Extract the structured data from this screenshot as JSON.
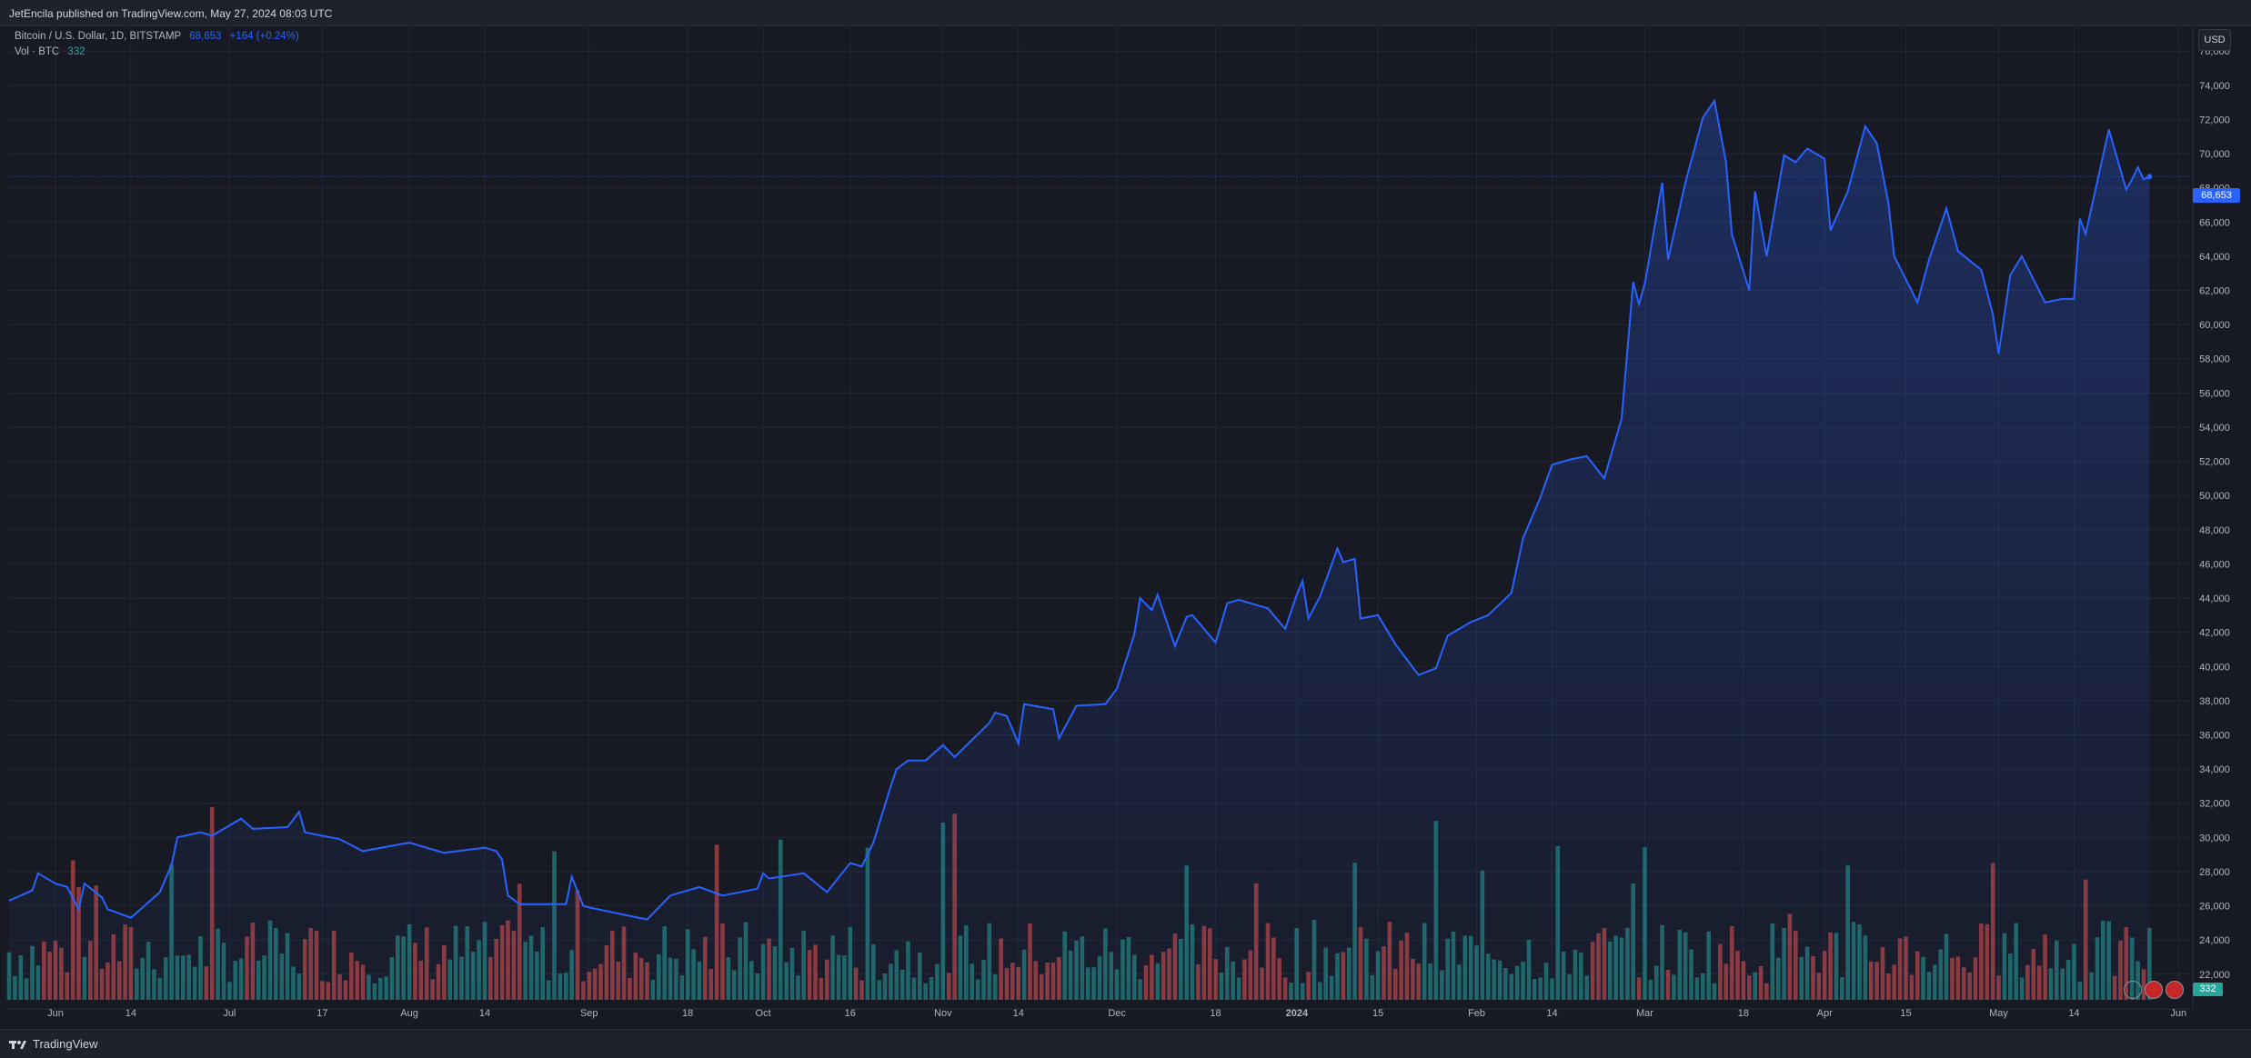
{
  "header": {
    "published": "JetEncila published on TradingView.com, May 27, 2024 08:03 UTC"
  },
  "legend": {
    "symbol": "Bitcoin / U.S. Dollar, 1D, BITSTAMP",
    "price": "68,653",
    "change": "+164 (+0.24%)",
    "volume_label": "Vol · BTC",
    "volume_value": "332"
  },
  "axis": {
    "currency": "USD",
    "price_tag": "68,653",
    "volume_tag": "332"
  },
  "footer": {
    "brand": "TradingView"
  },
  "colors": {
    "line": "#2962ff",
    "up_volume": "#26a69a",
    "down_volume": "#ef5350",
    "background": "#181a23"
  },
  "chart_data": {
    "type": "area",
    "title": "Bitcoin / U.S. Dollar, 1D, BITSTAMP",
    "xlabel": "",
    "ylabel": "",
    "grid": true,
    "ylim": [
      20500,
      77500
    ],
    "y_ticks": [
      22000,
      24000,
      26000,
      28000,
      30000,
      32000,
      34000,
      36000,
      38000,
      40000,
      42000,
      44000,
      46000,
      48000,
      50000,
      52000,
      54000,
      56000,
      58000,
      60000,
      62000,
      64000,
      66000,
      68000,
      70000,
      72000,
      74000,
      76000
    ],
    "y_tick_labels": [
      "22,000",
      "24,000",
      "26,000",
      "28,000",
      "30,000",
      "32,000",
      "34,000",
      "36,000",
      "38,000",
      "40,000",
      "42,000",
      "44,000",
      "46,000",
      "48,000",
      "50,000",
      "52,000",
      "54,000",
      "56,000",
      "58,000",
      "60,000",
      "62,000",
      "64,000",
      "66,000",
      "68,000",
      "70,000",
      "72,000",
      "74,000",
      "76,000"
    ],
    "x_range": [
      "2023-05-24",
      "2024-06-03"
    ],
    "x_ticks": [
      {
        "date": "2023-06-01",
        "label": "Jun"
      },
      {
        "date": "2023-06-14",
        "label": "14"
      },
      {
        "date": "2023-07-01",
        "label": "Jul"
      },
      {
        "date": "2023-07-17",
        "label": "17"
      },
      {
        "date": "2023-08-01",
        "label": "Aug"
      },
      {
        "date": "2023-08-14",
        "label": "14"
      },
      {
        "date": "2023-09-01",
        "label": "Sep"
      },
      {
        "date": "2023-09-18",
        "label": "18"
      },
      {
        "date": "2023-10-01",
        "label": "Oct"
      },
      {
        "date": "2023-10-16",
        "label": "16"
      },
      {
        "date": "2023-11-01",
        "label": "Nov"
      },
      {
        "date": "2023-11-14",
        "label": "14"
      },
      {
        "date": "2023-12-01",
        "label": "Dec"
      },
      {
        "date": "2023-12-18",
        "label": "18"
      },
      {
        "date": "2024-01-01",
        "label": "2024"
      },
      {
        "date": "2024-01-15",
        "label": "15"
      },
      {
        "date": "2024-02-01",
        "label": "Feb"
      },
      {
        "date": "2024-02-14",
        "label": "14"
      },
      {
        "date": "2024-03-01",
        "label": "Mar"
      },
      {
        "date": "2024-03-18",
        "label": "18"
      },
      {
        "date": "2024-04-01",
        "label": "Apr"
      },
      {
        "date": "2024-04-15",
        "label": "15"
      },
      {
        "date": "2024-05-01",
        "label": "May"
      },
      {
        "date": "2024-05-14",
        "label": "14"
      },
      {
        "date": "2024-06-01",
        "label": "Jun"
      }
    ],
    "series": [
      {
        "name": "Bitcoin / U.S. Dollar",
        "points": [
          [
            "2023-05-24",
            26300
          ],
          [
            "2023-05-28",
            26900
          ],
          [
            "2023-05-29",
            27900
          ],
          [
            "2023-06-01",
            27300
          ],
          [
            "2023-06-03",
            27100
          ],
          [
            "2023-06-05",
            25800
          ],
          [
            "2023-06-06",
            27300
          ],
          [
            "2023-06-09",
            26500
          ],
          [
            "2023-06-10",
            25800
          ],
          [
            "2023-06-14",
            25300
          ],
          [
            "2023-06-15",
            25600
          ],
          [
            "2023-06-19",
            26800
          ],
          [
            "2023-06-21",
            28400
          ],
          [
            "2023-06-22",
            30000
          ],
          [
            "2023-06-26",
            30300
          ],
          [
            "2023-06-28",
            30100
          ],
          [
            "2023-07-03",
            31100
          ],
          [
            "2023-07-05",
            30500
          ],
          [
            "2023-07-11",
            30600
          ],
          [
            "2023-07-13",
            31500
          ],
          [
            "2023-07-14",
            30300
          ],
          [
            "2023-07-20",
            29900
          ],
          [
            "2023-07-24",
            29200
          ],
          [
            "2023-08-01",
            29700
          ],
          [
            "2023-08-07",
            29100
          ],
          [
            "2023-08-14",
            29400
          ],
          [
            "2023-08-16",
            29200
          ],
          [
            "2023-08-17",
            28700
          ],
          [
            "2023-08-18",
            26600
          ],
          [
            "2023-08-20",
            26100
          ],
          [
            "2023-08-28",
            26100
          ],
          [
            "2023-08-29",
            27700
          ],
          [
            "2023-08-31",
            26000
          ],
          [
            "2023-09-01",
            25900
          ],
          [
            "2023-09-11",
            25200
          ],
          [
            "2023-09-15",
            26600
          ],
          [
            "2023-09-20",
            27100
          ],
          [
            "2023-09-24",
            26600
          ],
          [
            "2023-09-30",
            27000
          ],
          [
            "2023-10-01",
            27900
          ],
          [
            "2023-10-02",
            27600
          ],
          [
            "2023-10-08",
            27900
          ],
          [
            "2023-10-12",
            26800
          ],
          [
            "2023-10-16",
            28500
          ],
          [
            "2023-10-18",
            28300
          ],
          [
            "2023-10-20",
            29700
          ],
          [
            "2023-10-23",
            33000
          ],
          [
            "2023-10-24",
            34000
          ],
          [
            "2023-10-26",
            34500
          ],
          [
            "2023-10-29",
            34500
          ],
          [
            "2023-11-01",
            35400
          ],
          [
            "2023-11-03",
            34700
          ],
          [
            "2023-11-09",
            36700
          ],
          [
            "2023-11-10",
            37300
          ],
          [
            "2023-11-12",
            37100
          ],
          [
            "2023-11-14",
            35500
          ],
          [
            "2023-11-15",
            37800
          ],
          [
            "2023-11-20",
            37500
          ],
          [
            "2023-11-21",
            35800
          ],
          [
            "2023-11-24",
            37700
          ],
          [
            "2023-11-29",
            37800
          ],
          [
            "2023-12-01",
            38700
          ],
          [
            "2023-12-04",
            41900
          ],
          [
            "2023-12-05",
            44000
          ],
          [
            "2023-12-07",
            43300
          ],
          [
            "2023-12-08",
            44200
          ],
          [
            "2023-12-11",
            41200
          ],
          [
            "2023-12-13",
            42900
          ],
          [
            "2023-12-14",
            43000
          ],
          [
            "2023-12-18",
            41400
          ],
          [
            "2023-12-20",
            43700
          ],
          [
            "2023-12-22",
            43900
          ],
          [
            "2023-12-25",
            43600
          ],
          [
            "2023-12-27",
            43400
          ],
          [
            "2023-12-30",
            42200
          ],
          [
            "2024-01-01",
            44200
          ],
          [
            "2024-01-02",
            45000
          ],
          [
            "2024-01-03",
            42800
          ],
          [
            "2024-01-05",
            44100
          ],
          [
            "2024-01-08",
            46900
          ],
          [
            "2024-01-09",
            46100
          ],
          [
            "2024-01-11",
            46300
          ],
          [
            "2024-01-12",
            42800
          ],
          [
            "2024-01-15",
            43000
          ],
          [
            "2024-01-18",
            41300
          ],
          [
            "2024-01-22",
            39500
          ],
          [
            "2024-01-25",
            39900
          ],
          [
            "2024-01-27",
            41800
          ],
          [
            "2024-01-31",
            42600
          ],
          [
            "2024-02-03",
            43000
          ],
          [
            "2024-02-07",
            44300
          ],
          [
            "2024-02-09",
            47500
          ],
          [
            "2024-02-12",
            49900
          ],
          [
            "2024-02-14",
            51800
          ],
          [
            "2024-02-17",
            52100
          ],
          [
            "2024-02-20",
            52300
          ],
          [
            "2024-02-23",
            51000
          ],
          [
            "2024-02-26",
            54500
          ],
          [
            "2024-02-28",
            62500
          ],
          [
            "2024-02-29",
            61200
          ],
          [
            "2024-03-01",
            62400
          ],
          [
            "2024-03-04",
            68300
          ],
          [
            "2024-03-05",
            63800
          ],
          [
            "2024-03-08",
            68300
          ],
          [
            "2024-03-11",
            72100
          ],
          [
            "2024-03-13",
            73100
          ],
          [
            "2024-03-15",
            69500
          ],
          [
            "2024-03-16",
            65300
          ],
          [
            "2024-03-19",
            62000
          ],
          [
            "2024-03-20",
            67800
          ],
          [
            "2024-03-22",
            64000
          ],
          [
            "2024-03-25",
            69900
          ],
          [
            "2024-03-27",
            69500
          ],
          [
            "2024-03-29",
            70300
          ],
          [
            "2024-04-01",
            69700
          ],
          [
            "2024-04-02",
            65500
          ],
          [
            "2024-04-05",
            67800
          ],
          [
            "2024-04-08",
            71600
          ],
          [
            "2024-04-10",
            70600
          ],
          [
            "2024-04-12",
            67100
          ],
          [
            "2024-04-13",
            64000
          ],
          [
            "2024-04-17",
            61300
          ],
          [
            "2024-04-19",
            63800
          ],
          [
            "2024-04-22",
            66800
          ],
          [
            "2024-04-24",
            64300
          ],
          [
            "2024-04-28",
            63200
          ],
          [
            "2024-04-30",
            60600
          ],
          [
            "2024-05-01",
            58300
          ],
          [
            "2024-05-03",
            62900
          ],
          [
            "2024-05-05",
            64000
          ],
          [
            "2024-05-09",
            61300
          ],
          [
            "2024-05-12",
            61500
          ],
          [
            "2024-05-14",
            61500
          ],
          [
            "2024-05-15",
            66200
          ],
          [
            "2024-05-16",
            65300
          ],
          [
            "2024-05-20",
            71400
          ],
          [
            "2024-05-23",
            67900
          ],
          [
            "2024-05-24",
            68500
          ],
          [
            "2024-05-25",
            69200
          ],
          [
            "2024-05-26",
            68500
          ],
          [
            "2024-05-27",
            68653
          ]
        ]
      }
    ]
  }
}
